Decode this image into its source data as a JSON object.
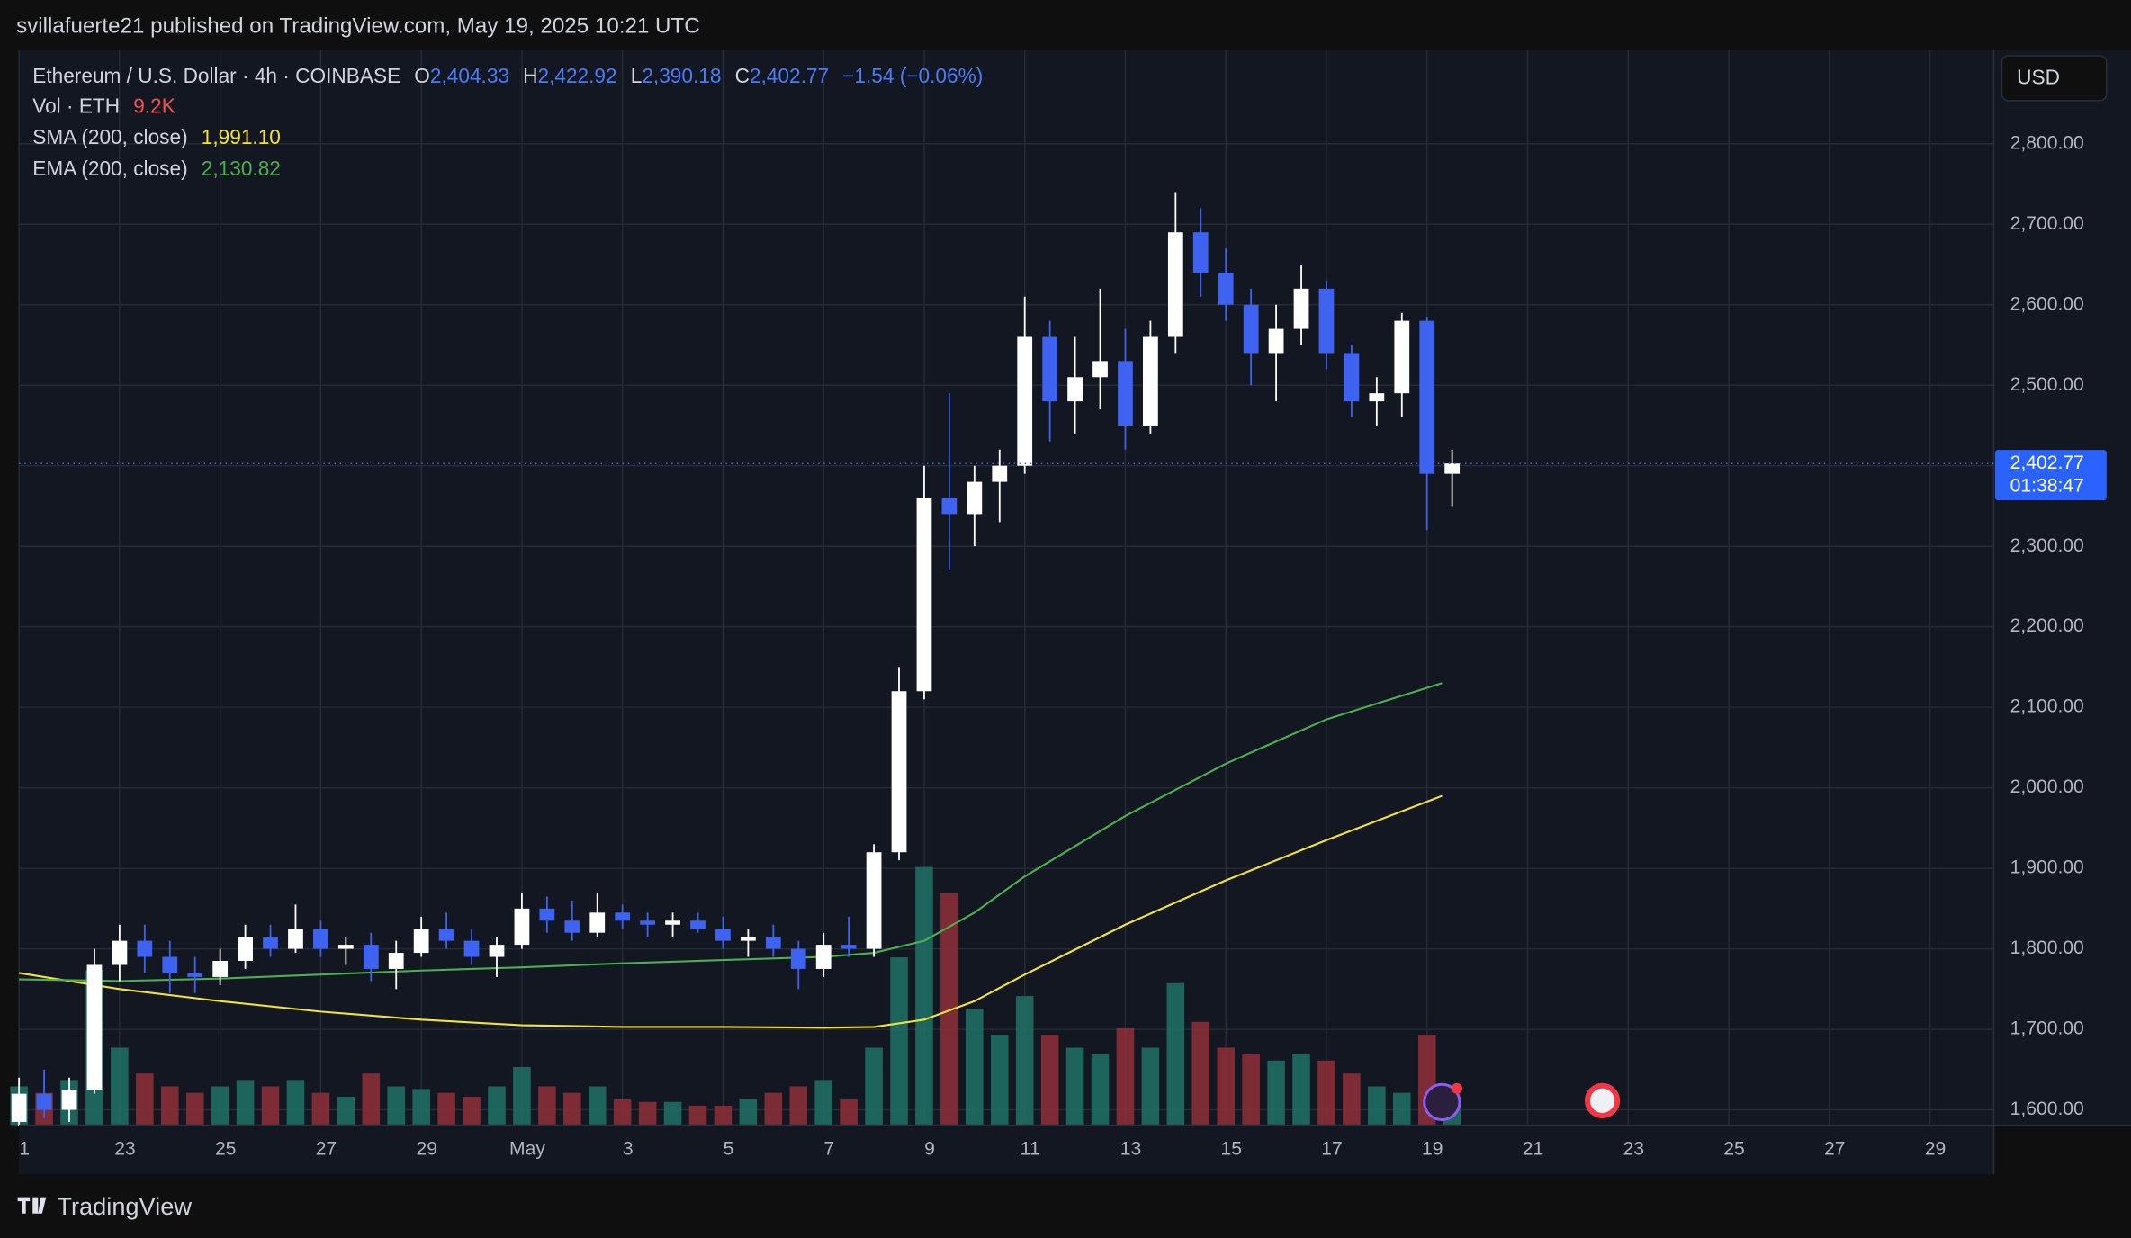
{
  "header": {
    "publisher": "svillafuerte21 published on TradingView.com, May 19, 2025 10:21 UTC"
  },
  "footer": {
    "brand": "TradingView"
  },
  "chart_data": {
    "type": "candlestick",
    "title": "Ethereum / U.S. Dollar · 4h · COINBASE",
    "ohlc_legend": [
      {
        "label": "O",
        "value": "2,404.33"
      },
      {
        "label": "H",
        "value": "2,422.92"
      },
      {
        "label": "L",
        "value": "2,390.18"
      },
      {
        "label": "C",
        "value": "2,402.77"
      }
    ],
    "change": "−1.54 (−0.06%)",
    "volume_legend": {
      "label": "Vol · ETH",
      "value": "9.2K"
    },
    "currency": "USD",
    "last_price": {
      "value": 2402.77,
      "label": "2,402.77"
    },
    "countdown": "01:38:47",
    "up_color": "#ffffff",
    "down_color": "#3d63f0",
    "volume_up_color": "#1f6e63",
    "volume_down_color": "#8a2f38",
    "x": [
      0,
      0.5,
      1,
      1.5,
      2,
      2.5,
      3,
      3.5,
      4,
      4.5,
      5,
      5.5,
      6,
      6.5,
      7,
      7.5,
      8,
      8.5,
      9,
      9.5,
      10,
      10.5,
      11,
      11.5,
      12,
      12.5,
      13,
      13.5,
      14,
      14.5,
      15,
      15.5,
      16,
      16.5,
      17,
      17.5,
      18,
      18.5,
      19,
      19.5,
      20,
      20.5,
      21,
      21.5,
      22,
      22.5,
      23,
      23.5,
      24,
      24.5,
      25,
      25.5,
      26,
      26.5,
      27,
      27.5,
      28,
      28.5
    ],
    "candles": [
      [
        1585,
        1640,
        1580,
        1620
      ],
      [
        1620,
        1650,
        1590,
        1600
      ],
      [
        1600,
        1640,
        1585,
        1625
      ],
      [
        1625,
        1800,
        1620,
        1780
      ],
      [
        1780,
        1830,
        1760,
        1810
      ],
      [
        1810,
        1830,
        1770,
        1790
      ],
      [
        1790,
        1810,
        1745,
        1770
      ],
      [
        1770,
        1790,
        1745,
        1765
      ],
      [
        1765,
        1800,
        1755,
        1785
      ],
      [
        1785,
        1830,
        1775,
        1815
      ],
      [
        1815,
        1830,
        1790,
        1800
      ],
      [
        1800,
        1855,
        1795,
        1825
      ],
      [
        1825,
        1835,
        1790,
        1800
      ],
      [
        1800,
        1815,
        1780,
        1805
      ],
      [
        1805,
        1820,
        1760,
        1775
      ],
      [
        1775,
        1810,
        1750,
        1795
      ],
      [
        1795,
        1840,
        1790,
        1825
      ],
      [
        1825,
        1845,
        1800,
        1810
      ],
      [
        1810,
        1825,
        1780,
        1790
      ],
      [
        1790,
        1815,
        1765,
        1805
      ],
      [
        1805,
        1870,
        1800,
        1850
      ],
      [
        1850,
        1865,
        1820,
        1835
      ],
      [
        1835,
        1860,
        1810,
        1820
      ],
      [
        1820,
        1870,
        1815,
        1845
      ],
      [
        1845,
        1855,
        1825,
        1835
      ],
      [
        1835,
        1845,
        1815,
        1830
      ],
      [
        1830,
        1845,
        1815,
        1835
      ],
      [
        1835,
        1845,
        1820,
        1825
      ],
      [
        1825,
        1840,
        1800,
        1810
      ],
      [
        1810,
        1825,
        1790,
        1815
      ],
      [
        1815,
        1830,
        1790,
        1800
      ],
      [
        1800,
        1810,
        1750,
        1775
      ],
      [
        1775,
        1820,
        1765,
        1805
      ],
      [
        1805,
        1840,
        1790,
        1800
      ],
      [
        1800,
        1930,
        1790,
        1920
      ],
      [
        1920,
        2150,
        1910,
        2120
      ],
      [
        2120,
        2400,
        2110,
        2360
      ],
      [
        2360,
        2490,
        2270,
        2340
      ],
      [
        2340,
        2400,
        2300,
        2380
      ],
      [
        2380,
        2420,
        2330,
        2400
      ],
      [
        2400,
        2610,
        2390,
        2560
      ],
      [
        2560,
        2580,
        2430,
        2480
      ],
      [
        2480,
        2560,
        2440,
        2510
      ],
      [
        2510,
        2620,
        2470,
        2530
      ],
      [
        2530,
        2570,
        2420,
        2450
      ],
      [
        2450,
        2580,
        2440,
        2560
      ],
      [
        2560,
        2740,
        2540,
        2690
      ],
      [
        2690,
        2720,
        2610,
        2640
      ],
      [
        2640,
        2670,
        2580,
        2600
      ],
      [
        2600,
        2620,
        2500,
        2540
      ],
      [
        2540,
        2600,
        2480,
        2570
      ],
      [
        2570,
        2650,
        2550,
        2620
      ],
      [
        2620,
        2630,
        2520,
        2540
      ],
      [
        2540,
        2550,
        2460,
        2480
      ],
      [
        2480,
        2510,
        2450,
        2490
      ],
      [
        2490,
        2590,
        2460,
        2580
      ],
      [
        2580,
        2585,
        2320,
        2390
      ],
      [
        2390,
        2420,
        2350,
        2402.77
      ]
    ],
    "volumes": [
      30,
      25,
      35,
      120,
      60,
      40,
      30,
      25,
      30,
      35,
      30,
      35,
      25,
      22,
      40,
      30,
      28,
      25,
      22,
      30,
      45,
      30,
      25,
      30,
      20,
      18,
      18,
      15,
      15,
      20,
      25,
      30,
      35,
      20,
      60,
      130,
      200,
      180,
      90,
      70,
      100,
      70,
      60,
      55,
      75,
      60,
      110,
      80,
      60,
      55,
      50,
      55,
      50,
      40,
      30,
      25,
      70,
      20
    ],
    "series": [
      {
        "name": "SMA (200, close)",
        "value_label": "1,991.10",
        "color": "#f2e33a",
        "x": [
          0,
          2,
          4,
          6,
          8,
          10,
          12,
          14,
          16,
          17,
          18,
          19,
          20,
          22,
          24,
          26,
          28.3
        ],
        "values": [
          1770,
          1750,
          1735,
          1722,
          1712,
          1705,
          1703,
          1703,
          1702,
          1703,
          1712,
          1735,
          1768,
          1830,
          1885,
          1935,
          1990
        ]
      },
      {
        "name": "EMA (200, close)",
        "value_label": "2,130.82",
        "color": "#4caf50",
        "x": [
          0,
          2,
          4,
          6,
          8,
          10,
          12,
          14,
          16,
          17,
          18,
          19,
          20,
          22,
          24,
          26,
          28.3
        ],
        "values": [
          1762,
          1760,
          1763,
          1768,
          1773,
          1777,
          1782,
          1786,
          1790,
          1795,
          1810,
          1845,
          1890,
          1965,
          2030,
          2085,
          2130
        ]
      }
    ],
    "xlim": [
      0,
      39.27
    ],
    "xticks": [
      {
        "value": 0,
        "label": "1"
      },
      {
        "value": 2,
        "label": "23"
      },
      {
        "value": 4,
        "label": "25"
      },
      {
        "value": 6,
        "label": "27"
      },
      {
        "value": 8,
        "label": "29"
      },
      {
        "value": 10,
        "label": "May"
      },
      {
        "value": 12,
        "label": "3"
      },
      {
        "value": 14,
        "label": "5"
      },
      {
        "value": 16,
        "label": "7"
      },
      {
        "value": 18,
        "label": "9"
      },
      {
        "value": 20,
        "label": "11"
      },
      {
        "value": 22,
        "label": "13"
      },
      {
        "value": 24,
        "label": "15"
      },
      {
        "value": 26,
        "label": "17"
      },
      {
        "value": 28,
        "label": "19"
      },
      {
        "value": 30,
        "label": "21"
      },
      {
        "value": 32,
        "label": "23"
      },
      {
        "value": 34,
        "label": "25"
      },
      {
        "value": 36,
        "label": "27"
      },
      {
        "value": 38,
        "label": "29"
      }
    ],
    "ylim": [
      1581,
      2916
    ],
    "yticks": [
      {
        "value": 1600,
        "label": "1,600.00"
      },
      {
        "value": 1700,
        "label": "1,700.00"
      },
      {
        "value": 1800,
        "label": "1,800.00"
      },
      {
        "value": 1900,
        "label": "1,900.00"
      },
      {
        "value": 2000,
        "label": "2,000.00"
      },
      {
        "value": 2100,
        "label": "2,100.00"
      },
      {
        "value": 2200,
        "label": "2,200.00"
      },
      {
        "value": 2300,
        "label": "2,300.00"
      },
      {
        "value": 2400,
        "label": "2,400.00"
      },
      {
        "value": 2500,
        "label": "2,500.00"
      },
      {
        "value": 2600,
        "label": "2,600.00"
      },
      {
        "value": 2700,
        "label": "2,700.00"
      },
      {
        "value": 2800,
        "label": "2,800.00"
      }
    ],
    "grid": true
  }
}
